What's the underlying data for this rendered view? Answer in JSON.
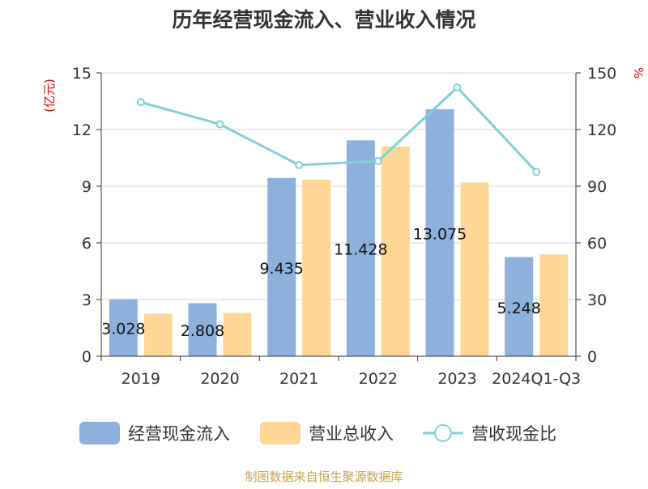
{
  "chart_data": {
    "type": "bar",
    "title": "历年经营现金流入、营业收入情况",
    "source": "制图数据来自恒生聚源数据库",
    "categories": [
      "2019",
      "2020",
      "2021",
      "2022",
      "2023",
      "2024Q1-Q3"
    ],
    "y_left": {
      "unit_label": "(亿元)",
      "range": [
        0,
        15
      ],
      "ticks": [
        "0",
        "3",
        "6",
        "9",
        "12",
        "15"
      ]
    },
    "y_right": {
      "unit_label": "%",
      "range": [
        0,
        150
      ],
      "ticks": [
        "0",
        "30",
        "60",
        "90",
        "120",
        "150"
      ]
    },
    "series": [
      {
        "name": "经营现金流入",
        "type": "bar",
        "axis": "left",
        "color": "#8eb0dc",
        "values": [
          3.028,
          2.808,
          9.435,
          11.428,
          13.075,
          5.248
        ],
        "labels": [
          "3.028",
          "2.808",
          "9.435",
          "11.428",
          "13.075",
          "5.248"
        ]
      },
      {
        "name": "营业总收入",
        "type": "bar",
        "axis": "left",
        "color": "#fed797",
        "values": [
          2.25,
          2.3,
          9.35,
          11.1,
          9.2,
          5.38
        ]
      },
      {
        "name": "营收现金比",
        "type": "line",
        "axis": "right",
        "color": "#7fd2d9",
        "values": [
          134.5,
          122.8,
          101.2,
          103.3,
          142.3,
          97.6
        ]
      }
    ],
    "grid": true,
    "legend_position": "bottom"
  }
}
